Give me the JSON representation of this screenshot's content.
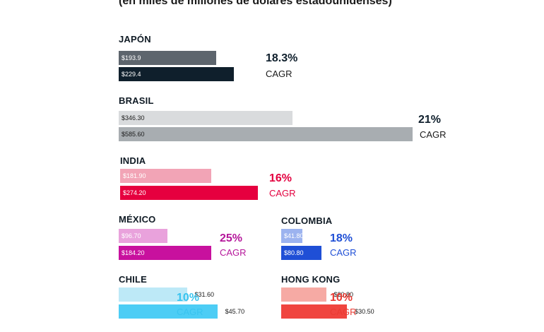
{
  "subtitle": "(en miles de millones de dolares estadounidenses)",
  "chart_data": {
    "type": "bar",
    "scale_max": 585.6,
    "groups": [
      {
        "name": "JAPÓN",
        "values": [
          193.9,
          229.4
        ],
        "labels": [
          "$193.9",
          "$229.4"
        ],
        "colors": [
          "#5d656d",
          "#0f1f2c"
        ],
        "label_colors": [
          "#ffffff",
          "#ffffff"
        ],
        "cagr_pct": "18.3%",
        "cagr_label": "CAGR",
        "accent": "#0f1f2c",
        "cagr_text_color": "#1a1a1a",
        "label_outside": false
      },
      {
        "name": "BRASIL",
        "values": [
          346.3,
          585.6
        ],
        "labels": [
          "$346.30",
          "$585.60"
        ],
        "colors": [
          "#d9dbdd",
          "#a8adb1"
        ],
        "label_colors": [
          "#1a1a1a",
          "#1a1a1a"
        ],
        "cagr_pct": "21%",
        "cagr_label": "CAGR",
        "accent": "#0f1f2c",
        "cagr_text_color": "#1a1a1a",
        "label_outside": false
      },
      {
        "name": "INDIA",
        "values": [
          181.9,
          274.2
        ],
        "labels": [
          "$181.90",
          "$274.20"
        ],
        "colors": [
          "#f2a4b6",
          "#e6003f"
        ],
        "label_colors": [
          "#ffffff",
          "#ffffff"
        ],
        "cagr_pct": "16%",
        "cagr_label": "CAGR",
        "accent": "#e3003f",
        "cagr_text_color": "#e3003f",
        "label_outside": false
      },
      {
        "name": "MÉXICO",
        "values": [
          96.7,
          184.2
        ],
        "labels": [
          "$96.70",
          "$184.20"
        ],
        "colors": [
          "#e9a2dc",
          "#c8119e"
        ],
        "label_colors": [
          "#ffffff",
          "#ffffff"
        ],
        "cagr_pct": "25%",
        "cagr_label": "CAGR",
        "accent": "#b5179b",
        "cagr_text_color": "#b5179b",
        "label_outside": false
      },
      {
        "name": "COLOMBIA",
        "values": [
          41.8,
          80.8
        ],
        "labels": [
          "$41.80",
          "$80.80"
        ],
        "colors": [
          "#9cb3ef",
          "#1f4fd6"
        ],
        "label_colors": [
          "#ffffff",
          "#ffffff"
        ],
        "cagr_pct": "18%",
        "cagr_label": "CAGR",
        "accent": "#1f4fd6",
        "cagr_text_color": "#1f4fd6",
        "label_outside": false
      },
      {
        "name": "CHILE",
        "values": [
          31.6,
          45.7
        ],
        "labels": [
          "$31.60",
          "$45.70"
        ],
        "colors": [
          "#bde9f7",
          "#4dcdf5"
        ],
        "label_colors": [
          "#1a1a1a",
          "#1a1a1a"
        ],
        "cagr_pct": "10%",
        "cagr_label": "CAGR",
        "accent": "#39c4ef",
        "cagr_text_color": "#39c4ef",
        "label_outside": true
      },
      {
        "name": "HONG KONG",
        "values": [
          20.8,
          30.5
        ],
        "labels": [
          "$20.80",
          "$30.50"
        ],
        "colors": [
          "#f6aaa4",
          "#f0453f"
        ],
        "label_colors": [
          "#1a1a1a",
          "#1a1a1a"
        ],
        "cagr_pct": "10%",
        "cagr_label": "CAGR",
        "accent": "#ea3b33",
        "cagr_text_color": "#ea3b33",
        "label_outside": true
      }
    ]
  }
}
